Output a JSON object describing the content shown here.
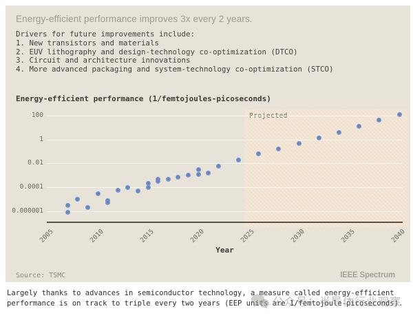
{
  "card": {
    "title": "Energy-efficient performance improves 3x every 2 years.",
    "drivers_heading": "Drivers for future improvements include:",
    "drivers": [
      "1. New transistors and materials",
      "2. EUV lithography and design-technology co-optimization (DTCO)",
      "3. Circuit and architecture innovations",
      "4. More advanced packaging and system-technology co-optimization (STCO)"
    ],
    "source": "Source: TSMC",
    "brand": "IEEE Spectrum"
  },
  "chart_data": {
    "type": "scatter",
    "title": "Energy-efficient performance (1/femtojoules-picoseconds)",
    "xlabel": "Year",
    "ylabel": "Energy-efficient performance (1/femtojoules-picoseconds)",
    "y_scale": "log",
    "x_ticks": [
      2005,
      2010,
      2015,
      2020,
      2025,
      2030,
      2035,
      2040
    ],
    "y_ticks": [
      100,
      1,
      0.01,
      0.0001,
      1e-06
    ],
    "y_tick_labels": [
      "100",
      "1",
      "0.01",
      "0.0001",
      "0.000001"
    ],
    "xlim": [
      2005,
      2040.5
    ],
    "ylim": [
      3e-07,
      1000
    ],
    "grid": true,
    "projected_label": "Projected",
    "projected_from_year": 2024,
    "colors": {
      "card_bg": "#e7e3d9",
      "projected_fill": "#f3e4d2",
      "point": "#7492cb",
      "axis": "#57534b",
      "gridline_on_bg": "rgba(255,255,255,0.68)"
    },
    "points": [
      [
        2007,
        3e-06
      ],
      [
        2007,
        8e-07
      ],
      [
        2008,
        1e-05
      ],
      [
        2009,
        2e-06
      ],
      [
        2010,
        3e-05
      ],
      [
        2011,
        8e-06
      ],
      [
        2011,
        5e-06
      ],
      [
        2012,
        6e-05
      ],
      [
        2013,
        0.0001
      ],
      [
        2014,
        5e-05
      ],
      [
        2015,
        0.0002
      ],
      [
        2015,
        0.0001
      ],
      [
        2016,
        0.0005
      ],
      [
        2016,
        0.0003
      ],
      [
        2017,
        0.0005
      ],
      [
        2018,
        0.0007
      ],
      [
        2019,
        0.0011
      ],
      [
        2020,
        0.003
      ],
      [
        2020,
        0.0012
      ],
      [
        2021,
        0.0016
      ],
      [
        2022,
        0.006
      ],
      [
        2024,
        0.018
      ],
      [
        2026,
        0.06
      ],
      [
        2028,
        0.15
      ],
      [
        2030,
        0.45
      ],
      [
        2032,
        1.4
      ],
      [
        2034,
        4
      ],
      [
        2036,
        13
      ],
      [
        2038,
        44
      ],
      [
        2040,
        112
      ]
    ]
  },
  "caption": {
    "lines": [
      "Largely thanks to advances in semiconductor technology, a measure called energy-efficient",
      "performance is on track to triple every two years (EEP units are 1/femtojoule-picoseconds)."
    ]
  },
  "watermark": {
    "icon": "wechat-icon",
    "text": "公众号：半导体行业观察"
  }
}
